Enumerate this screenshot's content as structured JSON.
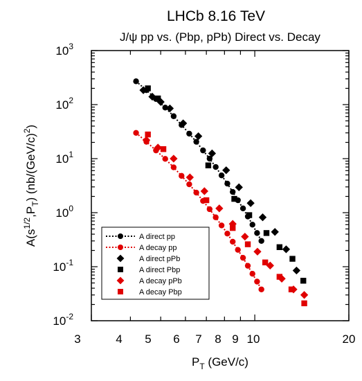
{
  "chart_data": {
    "type": "scatter",
    "title": "LHCb 8.16 TeV",
    "subtitle": "J/ψ pp vs. (Pbp, pPb) Direct vs. Decay",
    "xlabel": {
      "main": "P",
      "sub": "T",
      "rest": " (GeV/c)"
    },
    "ylabel": {
      "a": "A(s",
      "sup1": "1/2",
      "b": ",P",
      "sub": "T",
      "c": ") (nb/(GeV/c)",
      "sup2": "2",
      "d": ")"
    },
    "xscale": "log",
    "yscale": "log",
    "xlim": [
      3,
      20
    ],
    "ylim": [
      0.01,
      1000
    ],
    "x_tick_labels": [
      "3",
      "4",
      "5",
      "6",
      "7",
      "8",
      "9",
      "10",
      "20"
    ],
    "y_tick_labels": [
      {
        "base": "10",
        "exp": "-2"
      },
      {
        "base": "10",
        "exp": "-1"
      },
      {
        "base": "10",
        "exp": "0"
      },
      {
        "base": "10",
        "exp": "1"
      },
      {
        "base": "10",
        "exp": "2"
      },
      {
        "base": "10",
        "exp": "3"
      }
    ],
    "legend_position": "lower-left",
    "series": [
      {
        "name": "A direct pp",
        "color": "#000000",
        "marker": "circle",
        "line": "dotted",
        "x": [
          4.17,
          4.5,
          4.83,
          5.17,
          5.5,
          5.83,
          6.17,
          6.5,
          6.83,
          7.17,
          7.5,
          7.83,
          8.17,
          8.5,
          8.83,
          9.17,
          9.5,
          9.83,
          10.17,
          10.5
        ],
        "y": [
          270,
          185,
          127,
          88,
          61,
          42,
          29,
          20.5,
          14.2,
          10.0,
          7.0,
          4.9,
          3.45,
          2.42,
          1.7,
          1.2,
          0.85,
          0.6,
          0.42,
          0.3
        ]
      },
      {
        "name": "A decay pp",
        "color": "#e00000",
        "marker": "circle",
        "line": "dotted",
        "x": [
          4.17,
          4.5,
          4.83,
          5.17,
          5.5,
          5.83,
          6.17,
          6.5,
          6.83,
          7.17,
          7.5,
          7.83,
          8.17,
          8.5,
          8.83,
          9.17,
          9.5,
          9.83,
          10.17,
          10.5
        ],
        "y": [
          30,
          20.5,
          14.2,
          9.9,
          6.9,
          4.8,
          3.35,
          2.35,
          1.65,
          1.16,
          0.82,
          0.58,
          0.41,
          0.29,
          0.205,
          0.146,
          0.104,
          0.074,
          0.053,
          0.038
        ]
      },
      {
        "name": "A direct pPb",
        "color": "#000000",
        "marker": "diamond",
        "line": "none",
        "x": [
          4.4,
          4.7,
          5.0,
          5.35,
          5.9,
          6.6,
          7.3,
          8.1,
          8.9,
          9.7,
          10.6,
          11.6,
          12.6,
          13.6
        ],
        "y": [
          185,
          140,
          112,
          85,
          45,
          26,
          12.5,
          6.1,
          2.95,
          1.5,
          0.82,
          0.44,
          0.21,
          0.085
        ]
      },
      {
        "name": "A  direct Pbp",
        "color": "#000000",
        "marker": "square",
        "line": "none",
        "x": [
          4.55,
          4.9,
          7.1,
          8.6,
          9.6,
          10.9,
          12.0,
          13.2,
          14.3
        ],
        "y": [
          200,
          130,
          7.5,
          1.8,
          0.9,
          0.42,
          0.23,
          0.14,
          0.055
        ]
      },
      {
        "name": "A decay pPb",
        "color": "#e00000",
        "marker": "diamond",
        "line": "none",
        "x": [
          4.5,
          4.9,
          5.5,
          6.2,
          6.9,
          7.7,
          8.5,
          9.3,
          10.2,
          11.2,
          12.2,
          13.3,
          14.4
        ],
        "y": [
          22,
          16,
          10,
          4.5,
          2.5,
          1.2,
          0.62,
          0.36,
          0.19,
          0.105,
          0.06,
          0.038,
          0.03
        ]
      },
      {
        "name": "A decay Pbp",
        "color": "#e00000",
        "marker": "square",
        "line": "none",
        "x": [
          4.55,
          5.1,
          7.0,
          8.5,
          9.5,
          10.8,
          12.0,
          13.1,
          14.4
        ],
        "y": [
          28,
          15,
          1.7,
          0.52,
          0.26,
          0.12,
          0.065,
          0.038,
          0.021
        ]
      }
    ]
  }
}
